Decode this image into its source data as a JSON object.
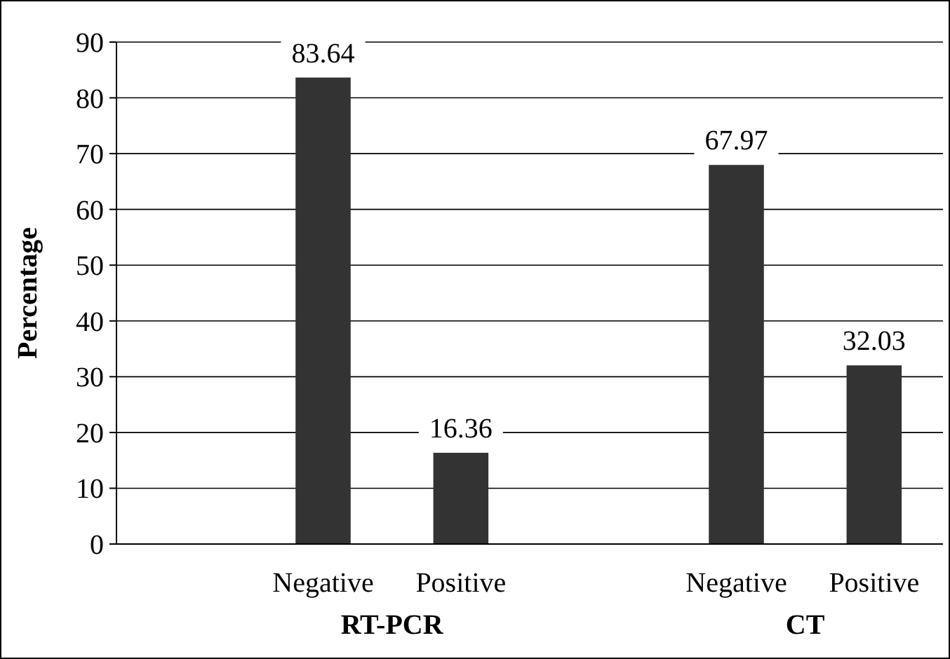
{
  "chart_data": {
    "type": "bar",
    "ylabel": "Percentage",
    "categories": [
      null,
      "Negative",
      "Positive",
      null,
      "Negative",
      "Positive"
    ],
    "values": [
      null,
      83.64,
      16.36,
      null,
      67.97,
      32.03
    ],
    "color": "#333333",
    "ylim": [
      0,
      90
    ],
    "yticks": [
      0,
      10,
      20,
      30,
      40,
      50,
      60,
      70,
      80,
      90
    ],
    "grid": "y",
    "data_labels": true,
    "annotations": [
      "RT-PCR",
      "CT"
    ]
  }
}
